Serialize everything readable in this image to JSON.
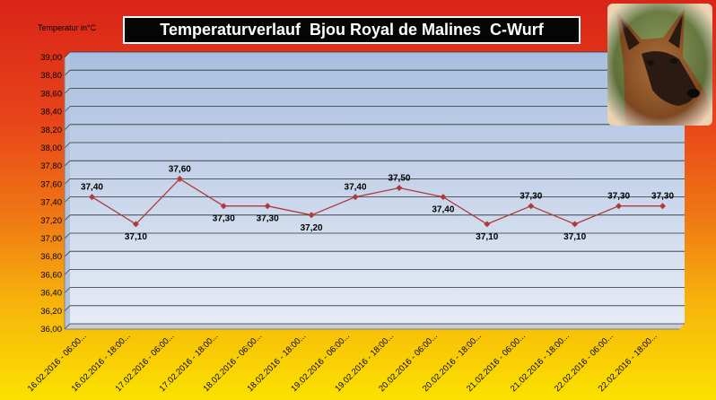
{
  "chart_data": {
    "type": "line",
    "title": "Temperaturverlauf  Bjou Royal de Malines  C-Wurf",
    "ylabel": "Temperatur in°C",
    "ylim": [
      36.0,
      39.0
    ],
    "ytick_step": 0.2,
    "yticks": [
      "36,00",
      "36,20",
      "36,40",
      "36,60",
      "36,80",
      "37,00",
      "37,20",
      "37,40",
      "37,60",
      "37,80",
      "38,00",
      "38,20",
      "38,40",
      "38,60",
      "38,80",
      "39,00"
    ],
    "categories": [
      "16.02.2016 - 06:00...",
      "16.02.2016 - 18:00...",
      "17.02.2016 - 06:00...",
      "17.02.2016 - 18:00...",
      "18.02.2016 - 06:00...",
      "18.02.2016 - 18:00...",
      "19.02.2016 - 06:00...",
      "19.02.2016 - 18:00...",
      "20.02.2016 - 06:00...",
      "20.02.2016 - 18:00...",
      "21.02.2016 - 06:00...",
      "21.02.2016 - 18:00...",
      "22.02.2016 - 06:00...",
      "22.02.2016 - 18:00..."
    ],
    "series": [
      {
        "values": [
          37.4,
          37.1,
          37.6,
          37.3,
          37.3,
          37.2,
          37.4,
          37.5,
          37.4,
          37.1,
          37.3,
          37.1,
          37.3,
          37.3
        ],
        "labels": [
          "37,40",
          "37,10",
          "37,60",
          "37,30",
          "37,30",
          "37,20",
          "37,40",
          "37,50",
          "37,40",
          "37,10",
          "37,30",
          "37,10",
          "37,30",
          "37,30"
        ],
        "label_pos": [
          "above",
          "below",
          "above",
          "below",
          "below",
          "below",
          "above",
          "above",
          "below",
          "below",
          "above",
          "below",
          "above",
          "above"
        ],
        "color": "#b03a3a"
      }
    ],
    "grid": true,
    "legend": "none",
    "plot_background": [
      "#a9bedf",
      "#e6ecf6"
    ]
  },
  "photo": {
    "icon": "malinois-dog-portrait"
  }
}
